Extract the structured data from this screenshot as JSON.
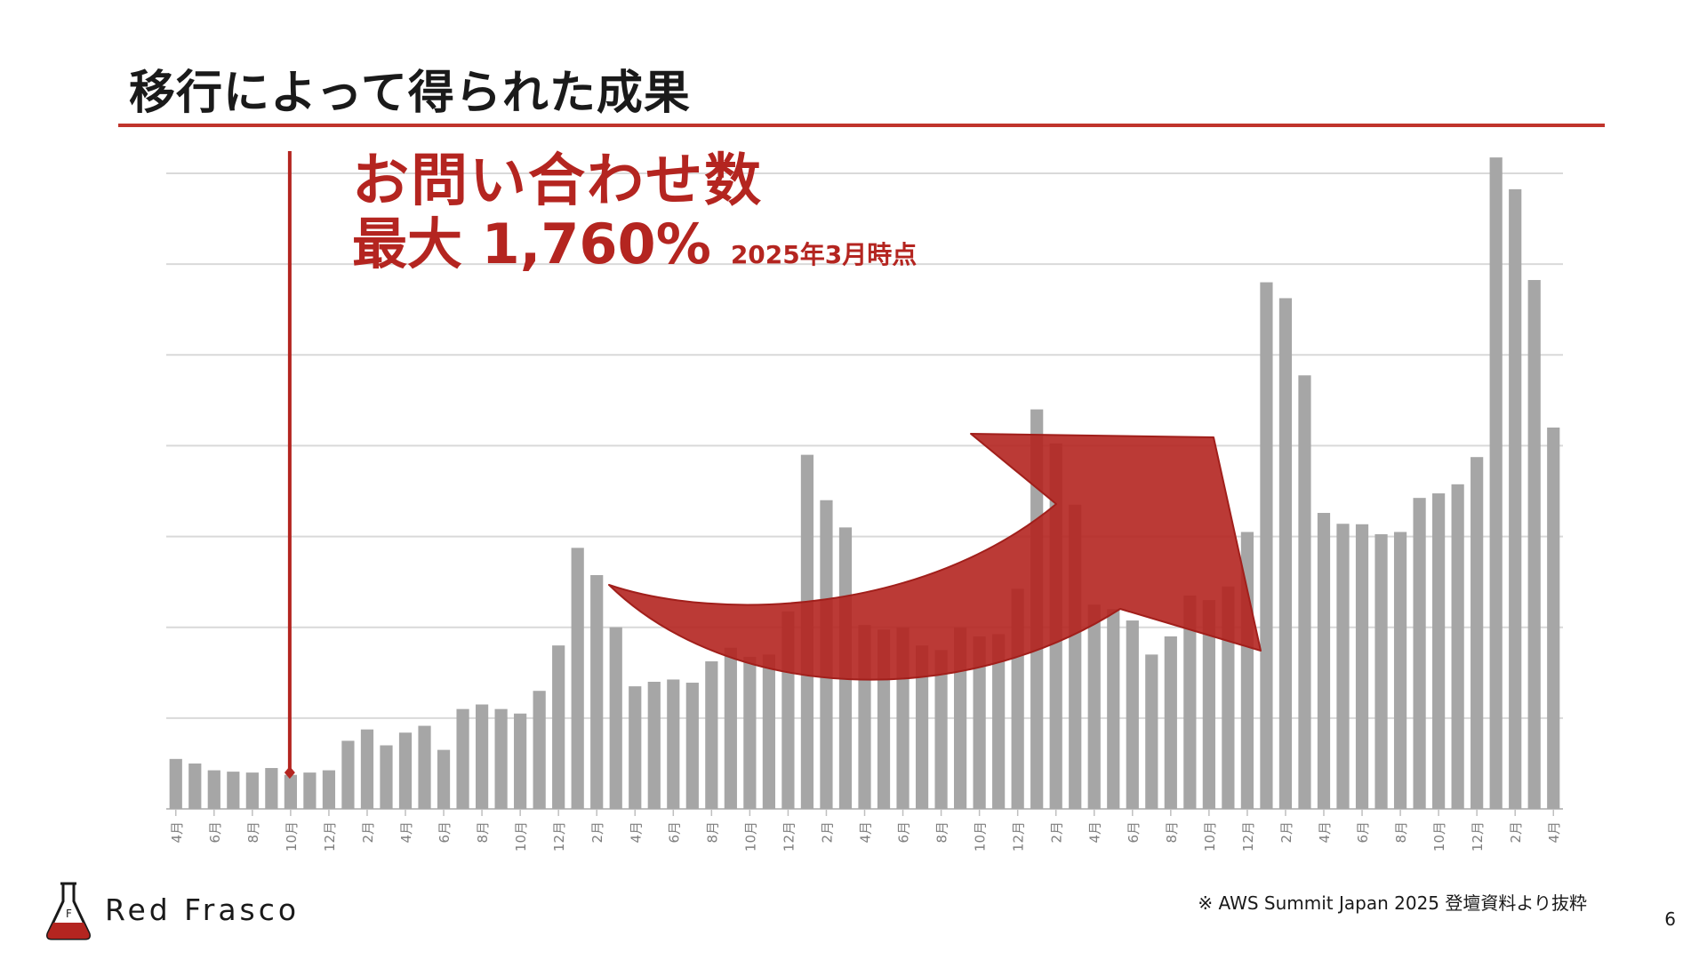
{
  "slide": {
    "title": "移行によって得られた成果",
    "page_number": "6",
    "source_note": "※ AWS Summit Japan 2025 登壇資料より抜粋",
    "brand": "Red Frasco"
  },
  "callout": {
    "line1": "お問い合わせ数",
    "line2": "最大 1,760%",
    "line2_note": "2025年3月時点"
  },
  "colors": {
    "accent": "#b42520",
    "bar": "#a6a6a6",
    "grid": "#d9d9d9",
    "title_rule": "#c0342c"
  },
  "chart_data": {
    "type": "bar",
    "title": "",
    "xlabel": "",
    "ylabel": "",
    "ylim": [
      0,
      14
    ],
    "gridlines": [
      0,
      2,
      4,
      6,
      8,
      10,
      12,
      14
    ],
    "grid": true,
    "categories": [
      "4月",
      "5月",
      "6月",
      "7月",
      "8月",
      "9月",
      "10月",
      "11月",
      "12月",
      "1月",
      "2月",
      "3月",
      "4月",
      "5月",
      "6月",
      "7月",
      "8月",
      "9月",
      "10月",
      "11月",
      "12月",
      "1月",
      "2月",
      "3月",
      "4月",
      "5月",
      "6月",
      "7月",
      "8月",
      "9月",
      "10月",
      "11月",
      "12月",
      "1月",
      "2月",
      "3月",
      "4月",
      "5月",
      "6月",
      "7月",
      "8月",
      "9月",
      "10月",
      "11月",
      "12月",
      "1月",
      "2月",
      "3月",
      "4月",
      "5月",
      "6月",
      "7月",
      "8月",
      "9月",
      "10月",
      "11月",
      "12月",
      "1月",
      "2月",
      "3月",
      "4月",
      "5月",
      "6月",
      "7月",
      "8月",
      "9月",
      "10月",
      "11月",
      "12月",
      "1月",
      "2月",
      "3月",
      "4月"
    ],
    "tick_labels_shown": [
      "4月",
      "6月",
      "8月",
      "10月",
      "12月",
      "2月",
      "4月",
      "6月",
      "8月",
      "10月",
      "12月",
      "2月",
      "4月",
      "6月",
      "8月",
      "10月",
      "12月",
      "2月",
      "4月",
      "6月",
      "8月",
      "10月",
      "12月",
      "2月",
      "4月",
      "6月",
      "8月",
      "10月",
      "12月",
      "2月",
      "4月",
      "6月",
      "8月",
      "10月",
      "12月",
      "2月",
      "4月"
    ],
    "values": [
      1.1,
      1.0,
      0.85,
      0.82,
      0.8,
      0.9,
      0.75,
      0.8,
      0.85,
      1.5,
      1.75,
      1.4,
      1.68,
      1.83,
      1.3,
      2.2,
      2.3,
      2.2,
      2.1,
      2.6,
      3.6,
      5.75,
      5.15,
      4.0,
      2.7,
      2.8,
      2.85,
      2.78,
      3.25,
      3.55,
      3.35,
      3.4,
      4.35,
      7.8,
      6.8,
      6.2,
      4.05,
      3.95,
      4.0,
      3.6,
      3.5,
      4.0,
      3.8,
      3.85,
      4.85,
      8.8,
      8.05,
      6.7,
      4.5,
      4.4,
      4.15,
      3.4,
      3.8,
      4.7,
      4.6,
      4.9,
      6.1,
      11.6,
      11.25,
      9.55,
      6.52,
      6.28,
      6.27,
      6.05,
      6.1,
      6.85,
      6.95,
      7.15,
      7.75,
      14.35,
      13.65,
      11.65,
      8.4
    ],
    "annotations": [
      {
        "type": "migration-marker",
        "category_index": 6
      },
      {
        "type": "growth-arrow",
        "text": "お問い合わせ数 最大 1,760%"
      }
    ]
  }
}
